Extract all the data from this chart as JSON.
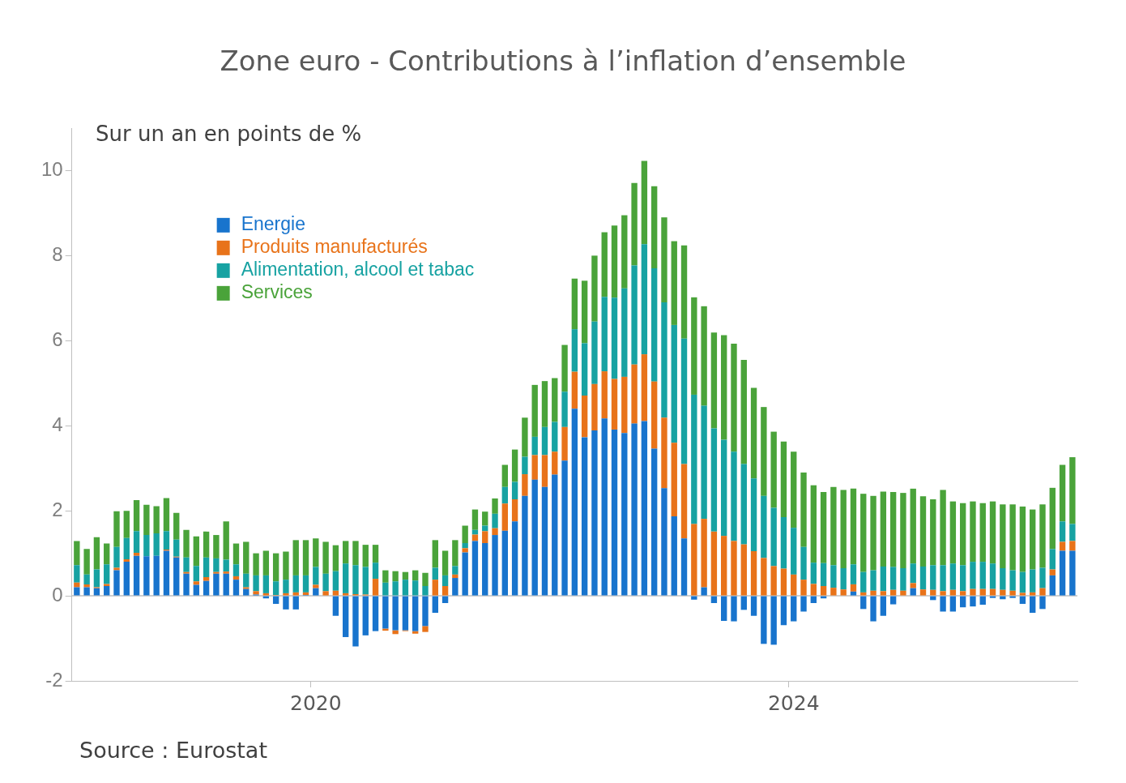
{
  "chart_data": {
    "type": "bar",
    "title": "Zone euro - Contributions à l’inflation d’ensemble",
    "ylabel": "Sur un an en points de %",
    "stacked": true,
    "legend": "top left",
    "grid": false,
    "categories": [
      null,
      null,
      null,
      null,
      null,
      null,
      null,
      null,
      null,
      null,
      null,
      null,
      null,
      null,
      null,
      null,
      null,
      null,
      null,
      null,
      null,
      null,
      null,
      null,
      "2020",
      null,
      null,
      null,
      null,
      null,
      null,
      null,
      null,
      null,
      null,
      null,
      null,
      null,
      null,
      null,
      null,
      null,
      null,
      null,
      null,
      null,
      null,
      null,
      null,
      null,
      null,
      null,
      null,
      null,
      null,
      null,
      null,
      null,
      null,
      null,
      null,
      null,
      null,
      null,
      null,
      null,
      null,
      null,
      null,
      null,
      null,
      null,
      "2024",
      null,
      null,
      null,
      null,
      null,
      null,
      null,
      null,
      null,
      null,
      null,
      null,
      null,
      null,
      null,
      null,
      null,
      null,
      null,
      null,
      null,
      null,
      null,
      null,
      null,
      null,
      null,
      null
    ],
    "ylim": [
      -2,
      11
    ],
    "yticks": [
      -2,
      0,
      2,
      4,
      6,
      8,
      10
    ],
    "ref_lines": [
      {
        "axis": "y",
        "value": 0,
        "color": "#bfbfbf"
      }
    ],
    "series": [
      {
        "name": "Energie",
        "color": "#1874cd",
        "values": [
          0.2,
          0.2,
          0.18,
          0.23,
          0.6,
          0.8,
          0.94,
          0.93,
          0.94,
          1.06,
          0.9,
          0.52,
          0.26,
          0.35,
          0.52,
          0.52,
          0.38,
          0.16,
          0.03,
          -0.06,
          -0.19,
          -0.32,
          -0.32,
          0.02,
          0.18,
          null,
          -0.47,
          -0.97,
          -1.19,
          -0.93,
          -0.83,
          -0.77,
          -0.81,
          -0.81,
          -0.83,
          -0.71,
          -0.4,
          -0.17,
          0.42,
          1.02,
          1.29,
          1.24,
          1.43,
          1.53,
          1.75,
          2.35,
          2.73,
          2.56,
          2.85,
          3.18,
          4.4,
          3.73,
          3.89,
          4.17,
          3.91,
          3.83,
          4.05,
          4.11,
          3.46,
          2.53,
          1.87,
          1.35,
          -0.09,
          0.2,
          -0.17,
          -0.59,
          -0.6,
          -0.33,
          -0.47,
          -1.13,
          -1.15,
          -0.69,
          -0.6,
          -0.37,
          -0.17,
          -0.06,
          0,
          0,
          0.1,
          -0.31,
          -0.6,
          -0.47,
          -0.2,
          0,
          0.18,
          0,
          -0.1,
          -0.37,
          -0.37,
          -0.27,
          -0.25,
          -0.21,
          -0.05,
          -0.08,
          -0.05,
          -0.19,
          -0.4,
          -0.31,
          0.48,
          1.06,
          1.06
        ]
      },
      {
        "name": "Produits manufacturés",
        "color": "#e8731a",
        "values": [
          0.11,
          0.07,
          0.02,
          0.05,
          0.06,
          0.06,
          0.07,
          null,
          0,
          0.03,
          0.02,
          0.04,
          0.08,
          0.09,
          0.04,
          0.05,
          0.08,
          0.04,
          0.08,
          0.06,
          0.02,
          0.06,
          0.08,
          0.06,
          0.08,
          0.11,
          0.12,
          0.06,
          0.04,
          0.03,
          0.4,
          -0.05,
          -0.09,
          -0.02,
          -0.06,
          -0.14,
          0.38,
          0.23,
          0.08,
          0.1,
          0.15,
          0.28,
          0.16,
          0.64,
          0.52,
          0.51,
          0.58,
          0.75,
          0.54,
          0.79,
          0.87,
          0.98,
          1.09,
          1.11,
          1.19,
          1.32,
          1.39,
          1.57,
          1.58,
          1.66,
          1.73,
          1.75,
          1.69,
          1.61,
          1.51,
          1.41,
          1.29,
          1.21,
          1.05,
          0.89,
          0.7,
          0.64,
          0.5,
          0.38,
          0.28,
          0.23,
          0.19,
          0.15,
          0.17,
          0.08,
          0.12,
          0.11,
          0.14,
          0.12,
          0.12,
          0.15,
          0.14,
          0.11,
          0.14,
          0.11,
          0.16,
          0.16,
          0.16,
          0.14,
          0.12,
          0.07,
          0.08,
          0.18,
          0.14,
          0.21,
          0.23
        ]
      },
      {
        "name": "Alimentation, alcool et tabac",
        "color": "#17a2a2",
        "values": [
          0.41,
          0.23,
          0.42,
          0.46,
          0.49,
          0.5,
          0.51,
          0.5,
          0.53,
          0.43,
          0.4,
          0.34,
          0.36,
          0.46,
          0.32,
          0.28,
          0.28,
          0.32,
          0.37,
          0.42,
          0.32,
          0.32,
          0.4,
          0.4,
          0.42,
          0.41,
          0.46,
          0.7,
          0.68,
          0.65,
          0.38,
          0.31,
          0.34,
          0.38,
          0.36,
          0.23,
          0.28,
          0.25,
          0.2,
          0.12,
          0.11,
          0.13,
          0.34,
          0.39,
          0.41,
          0.41,
          0.43,
          0.66,
          0.7,
          0.83,
          1.0,
          1.23,
          1.47,
          1.75,
          1.91,
          2.08,
          2.33,
          2.59,
          2.66,
          2.71,
          2.77,
          2.95,
          3.04,
          2.66,
          2.43,
          2.26,
          2.1,
          1.89,
          1.71,
          1.46,
          1.37,
          1.21,
          1.1,
          0.77,
          0.5,
          0.54,
          0.53,
          0.5,
          0.47,
          0.48,
          0.48,
          0.58,
          0.54,
          0.53,
          0.46,
          0.54,
          0.58,
          0.61,
          0.62,
          0.61,
          0.64,
          0.64,
          0.6,
          0.51,
          0.48,
          0.49,
          0.54,
          0.48,
          0.48,
          0.48,
          0.4
        ]
      },
      {
        "name": "Services",
        "color": "#4aa33a",
        "values": [
          0.57,
          0.6,
          0.76,
          0.49,
          0.84,
          0.64,
          0.73,
          0.71,
          0.64,
          0.78,
          0.63,
          0.65,
          0.7,
          0.61,
          0.55,
          0.9,
          0.49,
          0.75,
          0.52,
          0.58,
          0.66,
          0.66,
          0.83,
          0.83,
          0.67,
          0.75,
          0.61,
          0.53,
          0.57,
          0.52,
          0.42,
          0.29,
          0.24,
          0.18,
          0.24,
          0.31,
          0.65,
          0.58,
          0.61,
          0.41,
          0.48,
          0.33,
          0.36,
          0.52,
          0.76,
          0.92,
          1.22,
          1.08,
          1.03,
          1.1,
          1.19,
          1.47,
          1.55,
          1.52,
          1.7,
          1.72,
          1.94,
          1.96,
          1.93,
          2.0,
          1.97,
          2.19,
          2.29,
          2.34,
          2.25,
          2.46,
          2.54,
          2.45,
          2.13,
          2.09,
          1.79,
          1.78,
          1.79,
          1.75,
          1.82,
          1.67,
          1.84,
          1.84,
          1.78,
          1.84,
          1.75,
          1.76,
          1.76,
          1.77,
          1.76,
          1.65,
          1.55,
          1.77,
          1.46,
          1.46,
          1.42,
          1.38,
          1.46,
          1.5,
          1.55,
          1.54,
          1.41,
          1.49,
          1.44,
          1.33,
          1.57
        ]
      }
    ],
    "annotations": [
      "Source :  Eurostat"
    ]
  }
}
